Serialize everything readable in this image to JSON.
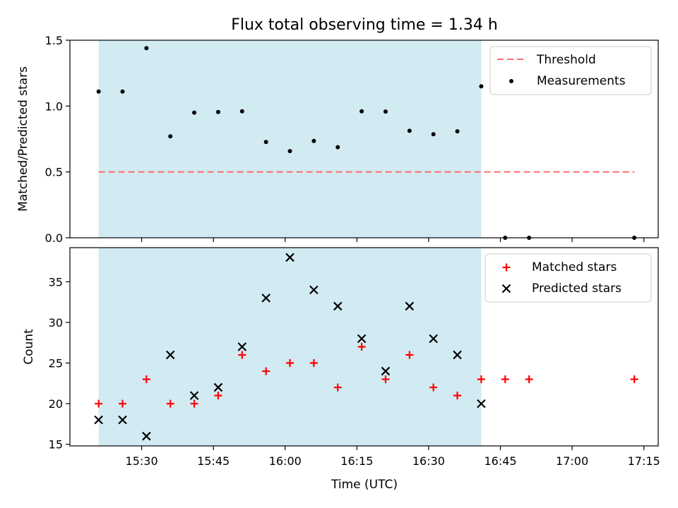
{
  "figure": {
    "title": "Flux total observing time = 1.34 h",
    "xlabel": "Time (UTC)"
  },
  "colors": {
    "shade": "#add8e6",
    "threshold": "#ff6b6b",
    "measurements": "#000000",
    "matched": "#ff0000",
    "predicted": "#000000"
  },
  "chart_data": [
    {
      "type": "scatter",
      "panel": "top",
      "ylabel": "Matched/Predicted stars",
      "ylim": [
        0,
        1.5
      ],
      "yticks": [
        0,
        0.5,
        1.0,
        1.5
      ],
      "ytick_labels": [
        "0.0",
        "0.5",
        "1.0",
        "1.5"
      ],
      "xlim": [
        "15:15",
        "17:18"
      ],
      "xticks": [
        "15:30",
        "15:45",
        "16:00",
        "16:15",
        "16:30",
        "16:45",
        "17:00",
        "17:15"
      ],
      "xtick_labels": [],
      "shaded_region": [
        "15:21",
        "16:41"
      ],
      "legend": {
        "placement": "top-right",
        "entries": [
          "Threshold",
          "Measurements"
        ]
      },
      "series": [
        {
          "name": "Threshold",
          "kind": "dashed-line",
          "x": [
            "15:21",
            "17:13"
          ],
          "y": [
            0.5,
            0.5
          ]
        },
        {
          "name": "Measurements",
          "kind": "dots",
          "x": [
            "15:21",
            "15:26",
            "15:31",
            "15:36",
            "15:41",
            "15:46",
            "15:51",
            "15:56",
            "16:01",
            "16:06",
            "16:11",
            "16:16",
            "16:21",
            "16:26",
            "16:31",
            "16:36",
            "16:41",
            "16:46",
            "16:51",
            "17:13"
          ],
          "y": [
            1.11,
            1.11,
            1.44,
            0.77,
            0.95,
            0.955,
            0.96,
            0.727,
            0.658,
            0.735,
            0.688,
            0.96,
            0.958,
            0.812,
            0.786,
            0.808,
            1.15,
            0.0,
            0.0,
            0.0
          ]
        }
      ]
    },
    {
      "type": "scatter",
      "panel": "bottom",
      "ylabel": "Count",
      "ylim": [
        14.8,
        39.2
      ],
      "yticks": [
        15,
        20,
        25,
        30,
        35
      ],
      "ytick_labels": [
        "15",
        "20",
        "25",
        "30",
        "35"
      ],
      "xlim": [
        "15:15",
        "17:18"
      ],
      "xticks": [
        "15:30",
        "15:45",
        "16:00",
        "16:15",
        "16:30",
        "16:45",
        "17:00",
        "17:15"
      ],
      "xtick_labels": [
        "15:30",
        "15:45",
        "16:00",
        "16:15",
        "16:30",
        "16:45",
        "17:00",
        "17:15"
      ],
      "shaded_region": [
        "15:21",
        "16:41"
      ],
      "legend": {
        "placement": "top-right",
        "entries": [
          "Matched stars",
          "Predicted stars"
        ]
      },
      "series": [
        {
          "name": "Matched stars",
          "kind": "plus",
          "x": [
            "15:21",
            "15:26",
            "15:31",
            "15:36",
            "15:41",
            "15:46",
            "15:51",
            "15:56",
            "16:01",
            "16:06",
            "16:11",
            "16:16",
            "16:21",
            "16:26",
            "16:31",
            "16:36",
            "16:41",
            "16:46",
            "16:51",
            "17:13"
          ],
          "y": [
            20,
            20,
            23,
            20,
            20,
            21,
            26,
            24,
            25,
            25,
            22,
            27,
            23,
            26,
            22,
            21,
            23,
            23,
            23,
            23
          ]
        },
        {
          "name": "Predicted stars",
          "kind": "x",
          "x": [
            "15:21",
            "15:26",
            "15:31",
            "15:36",
            "15:41",
            "15:46",
            "15:51",
            "15:56",
            "16:01",
            "16:06",
            "16:11",
            "16:16",
            "16:21",
            "16:26",
            "16:31",
            "16:36",
            "16:41"
          ],
          "y": [
            18,
            18,
            16,
            26,
            21,
            22,
            27,
            33,
            38,
            34,
            32,
            28,
            24,
            32,
            28,
            26,
            20
          ]
        }
      ]
    }
  ]
}
